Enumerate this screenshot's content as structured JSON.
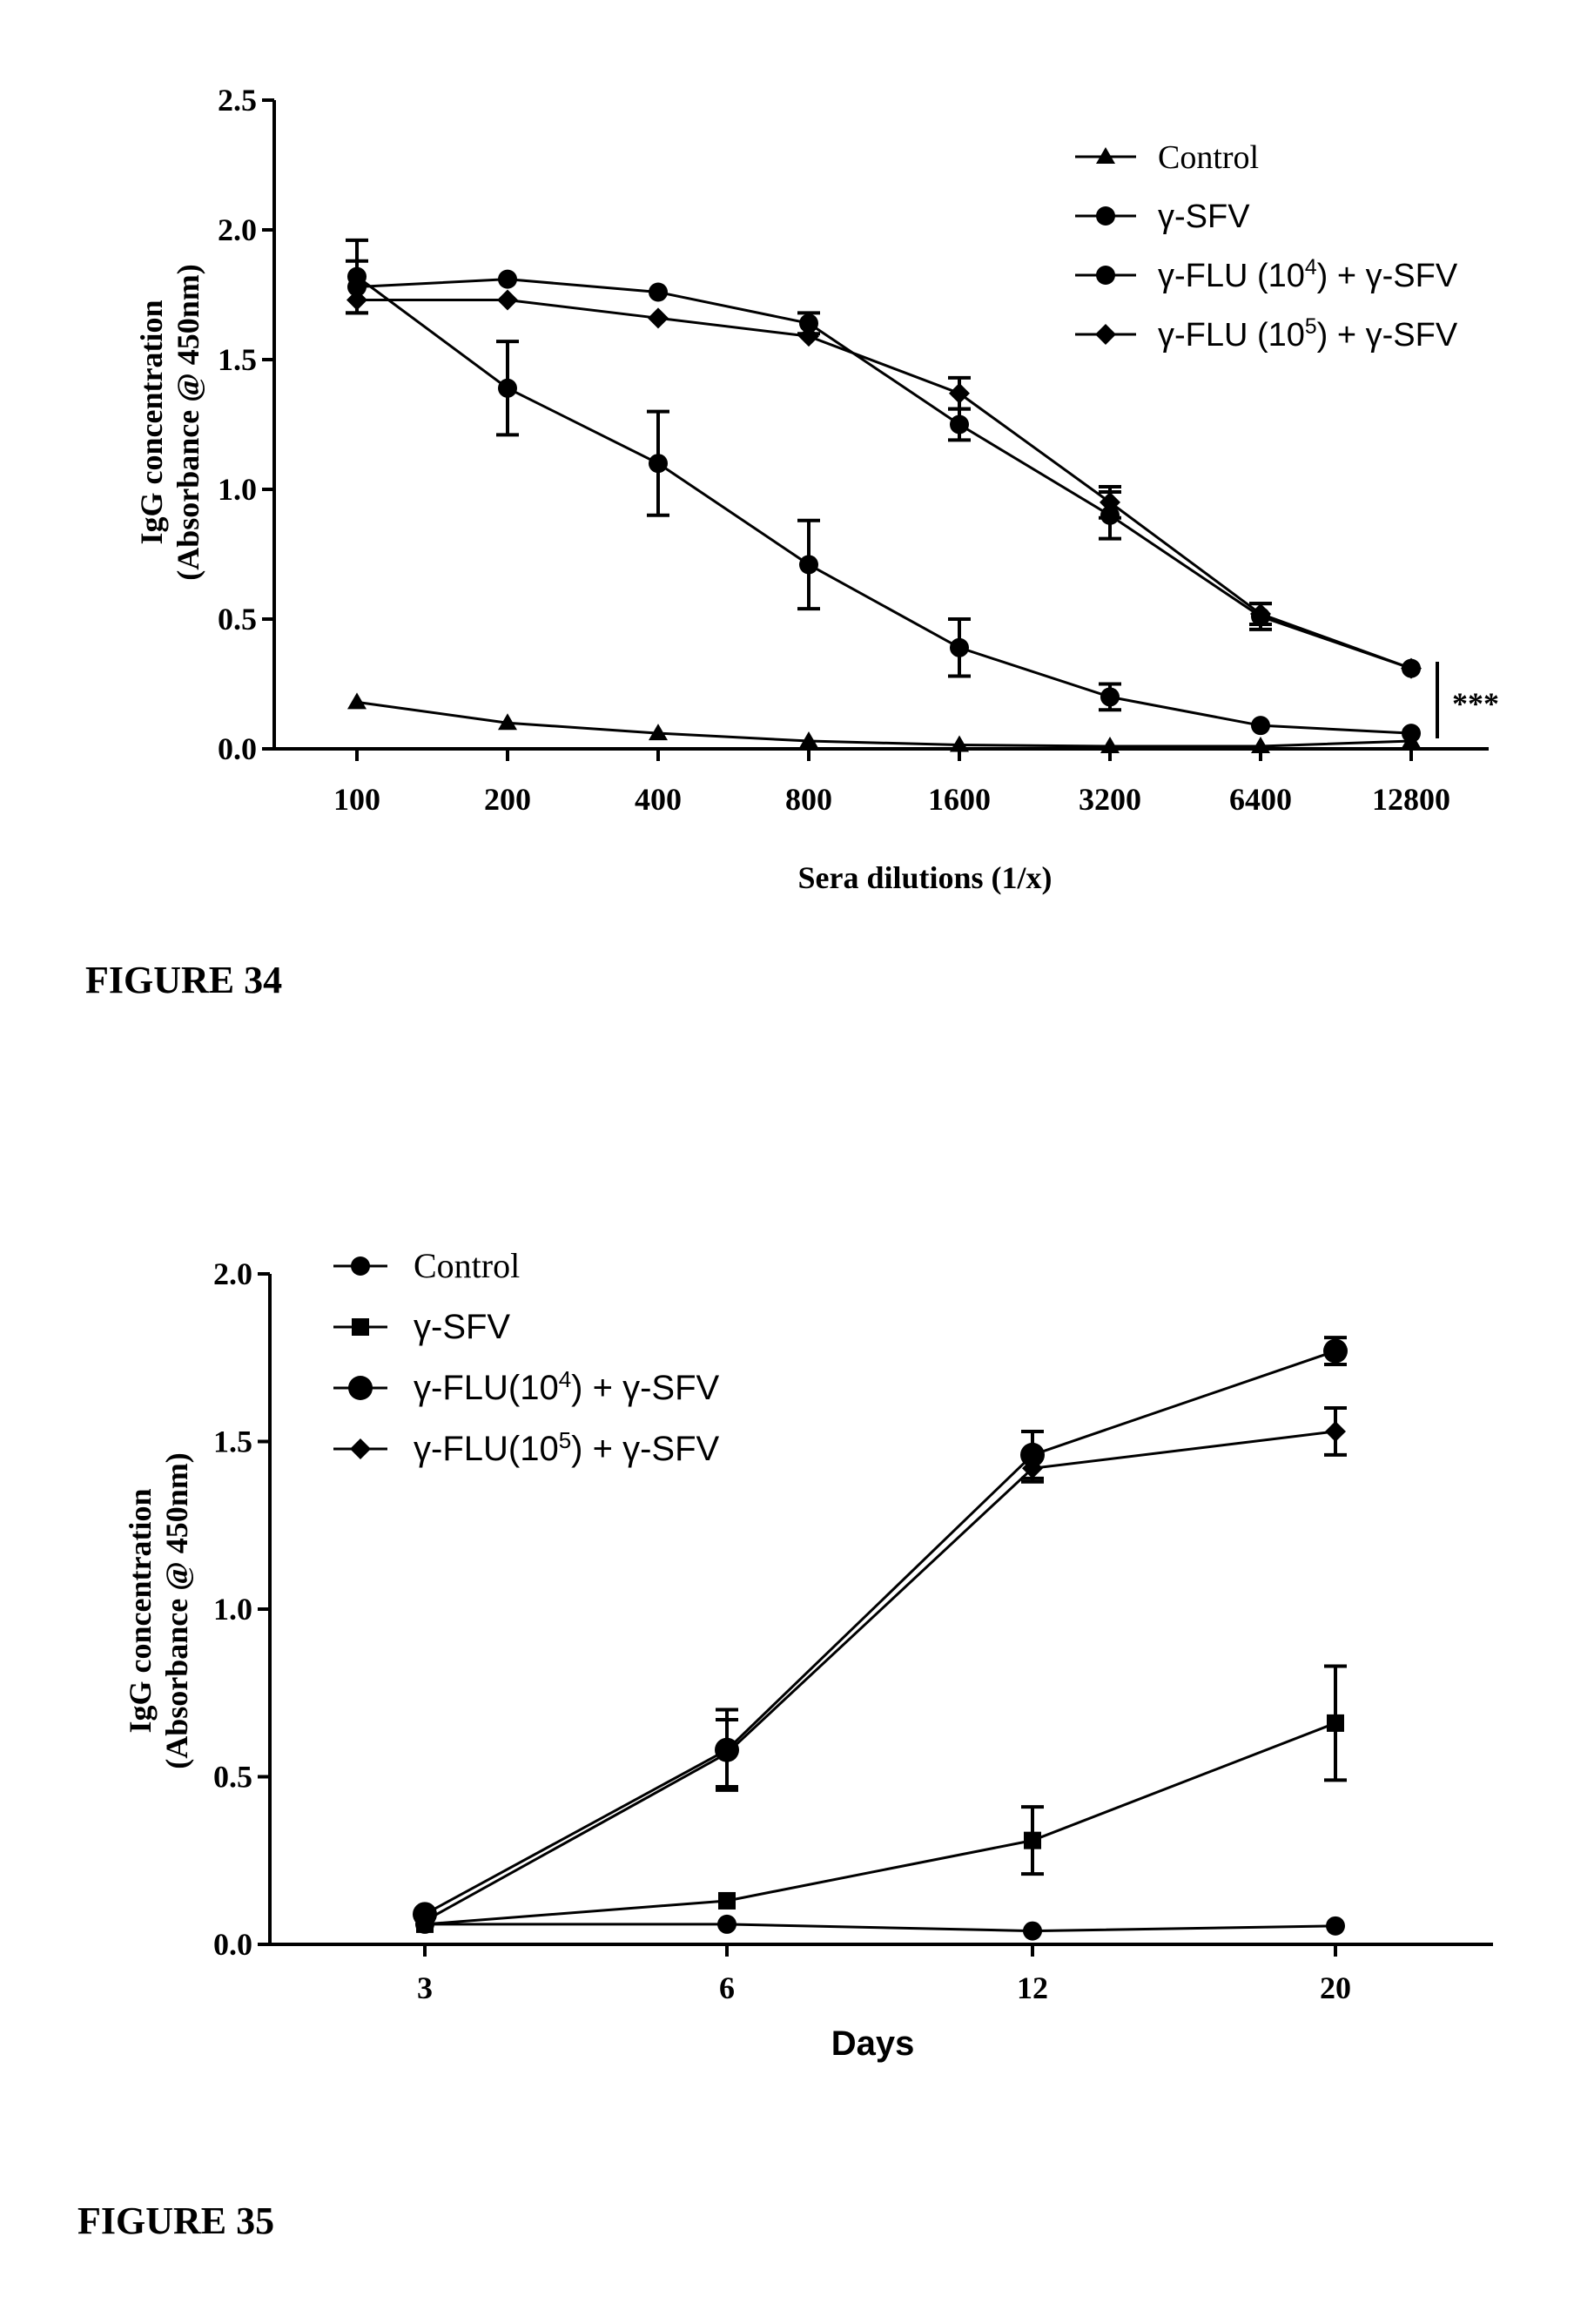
{
  "figures": [
    {
      "caption": "FIGURE 34"
    },
    {
      "caption": "FIGURE 35"
    }
  ],
  "chart_data": [
    {
      "type": "line",
      "title": "",
      "xlabel": "Sera dilutions (1/x)",
      "ylabel": [
        "IgG concentration",
        "(Absorbance @ 450nm)"
      ],
      "x_scale": "log2",
      "categories": [
        "100",
        "200",
        "400",
        "800",
        "1600",
        "3200",
        "6400",
        "12800"
      ],
      "y_ticks": [
        "0.0",
        "0.5",
        "1.0",
        "1.5",
        "2.0",
        "2.5"
      ],
      "ylim": [
        0,
        2.5
      ],
      "legend_position": "top-right",
      "annotation": "***",
      "series": [
        {
          "name": "Control",
          "marker": "triangle",
          "values": [
            0.18,
            0.1,
            0.06,
            0.03,
            0.015,
            0.01,
            0.01,
            0.03
          ],
          "errors": [
            0,
            0,
            0,
            0,
            0,
            0,
            0,
            0
          ]
        },
        {
          "name": "γ-SFV",
          "marker": "circle",
          "values": [
            1.82,
            1.39,
            1.1,
            0.71,
            0.39,
            0.2,
            0.09,
            0.06
          ],
          "errors": [
            0.14,
            0.18,
            0.2,
            0.17,
            0.11,
            0.05,
            0,
            0
          ]
        },
        {
          "name": "γ-FLU (10^4) + γ-SFV",
          "name_parts": [
            "γ-FLU (10",
            "4",
            ") + γ-SFV"
          ],
          "marker": "circle",
          "values": [
            1.78,
            1.81,
            1.76,
            1.64,
            1.25,
            0.9,
            0.51,
            0.31
          ],
          "errors": [
            0.1,
            0,
            0,
            0.04,
            0.06,
            0.09,
            0.05,
            0
          ]
        },
        {
          "name": "γ-FLU (10^5) + γ-SFV",
          "name_parts": [
            "γ-FLU (10",
            "5",
            ") + γ-SFV"
          ],
          "marker": "diamond",
          "values": [
            1.73,
            1.73,
            1.66,
            1.59,
            1.37,
            0.95,
            0.52,
            0.31
          ],
          "errors": [
            0,
            0,
            0,
            0,
            0.06,
            0.06,
            0.04,
            0
          ]
        }
      ]
    },
    {
      "type": "line",
      "title": "",
      "xlabel": "Days",
      "ylabel": [
        "IgG concentration",
        "(Absorbance @ 450nm)"
      ],
      "x_scale": "categorical",
      "categories": [
        "3",
        "6",
        "12",
        "20"
      ],
      "y_ticks": [
        "0.0",
        "0.5",
        "1.0",
        "1.5",
        "2.0"
      ],
      "ylim": [
        0,
        2.0
      ],
      "legend_position": "top-left",
      "series": [
        {
          "name": "Control",
          "marker": "circle",
          "values": [
            0.06,
            0.06,
            0.04,
            0.055
          ],
          "errors": [
            0,
            0,
            0,
            0
          ]
        },
        {
          "name": "γ-SFV",
          "marker": "square",
          "values": [
            0.06,
            0.13,
            0.31,
            0.66
          ],
          "errors": [
            0,
            0,
            0.1,
            0.17
          ]
        },
        {
          "name": "γ-FLU(10^4) + γ-SFV",
          "name_parts": [
            "γ-FLU(10",
            "4",
            ") + γ-SFV"
          ],
          "marker": "circle-large",
          "values": [
            0.09,
            0.58,
            1.46,
            1.77
          ],
          "errors": [
            0,
            0.12,
            0.07,
            0.04
          ]
        },
        {
          "name": "γ-FLU(10^5) + γ-SFV",
          "name_parts": [
            "γ-FLU(10",
            "5",
            ") + γ-SFV"
          ],
          "marker": "diamond",
          "values": [
            0.07,
            0.57,
            1.42,
            1.53
          ],
          "errors": [
            0,
            0.1,
            0.04,
            0.07
          ]
        }
      ]
    }
  ]
}
